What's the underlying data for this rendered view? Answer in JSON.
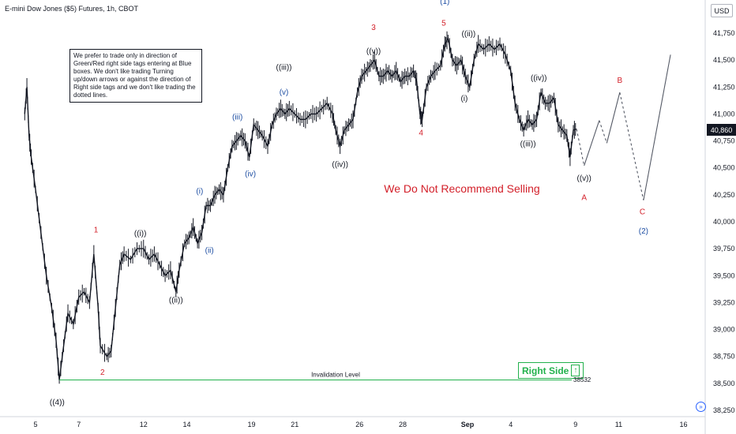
{
  "header": {
    "symbol_title": "E-mini Dow Jones ($5) Futures, 1h, CBOT",
    "currency_button": "USD"
  },
  "note_text": "We prefer to trade only in direction of Green/Red right side tags entering at Blue boxes. We don't like trading Turning up/down arrows or against the direction of Right side tags and we don't like trading the dotted lines.",
  "recommendation": "We Do Not Recommend Selling",
  "right_side_label": "Right Side",
  "invalidation": {
    "label": "Invalidation Level",
    "value": "38532",
    "price": 38532
  },
  "current_price": "40,860",
  "colors": {
    "wave_red": "#d3202a",
    "wave_blue": "#1f4fa3",
    "wave_black": "#131722",
    "green": "#22b14c",
    "bar": "#131722"
  },
  "chart_data": {
    "type": "line",
    "ylim": [
      38250,
      42000
    ],
    "yticks": [
      {
        "value": 38250,
        "label": "38,250"
      },
      {
        "value": 38500,
        "label": "38,500"
      },
      {
        "value": 38750,
        "label": "38,750"
      },
      {
        "value": 39000,
        "label": "39,000"
      },
      {
        "value": 39250,
        "label": "39,250"
      },
      {
        "value": 39500,
        "label": "39,500"
      },
      {
        "value": 39750,
        "label": "39,750"
      },
      {
        "value": 40000,
        "label": "40,000"
      },
      {
        "value": 40250,
        "label": "40,250"
      },
      {
        "value": 40500,
        "label": "40,500"
      },
      {
        "value": 40750,
        "label": "40,750"
      },
      {
        "value": 41000,
        "label": "41,000"
      },
      {
        "value": 41250,
        "label": "41,250"
      },
      {
        "value": 41500,
        "label": "41,500"
      },
      {
        "value": 41750,
        "label": "41,750"
      }
    ],
    "xlim": [
      -1,
      53
    ],
    "xticks": [
      {
        "t": 0,
        "label": "5"
      },
      {
        "t": 4,
        "label": "7"
      },
      {
        "t": 10,
        "label": "12"
      },
      {
        "t": 14,
        "label": "14"
      },
      {
        "t": 20,
        "label": "19"
      },
      {
        "t": 24,
        "label": "21"
      },
      {
        "t": 30,
        "label": "26"
      },
      {
        "t": 34,
        "label": "28"
      },
      {
        "t": 40,
        "label": "Sep"
      },
      {
        "t": 44,
        "label": "4"
      },
      {
        "t": 50,
        "label": "9"
      },
      {
        "t": 54,
        "label": "11"
      },
      {
        "t": 60,
        "label": "16"
      }
    ],
    "series": [
      {
        "kind": "price",
        "points": [
          [
            -1,
            41000
          ],
          [
            -0.8,
            41250
          ],
          [
            -0.6,
            40800
          ],
          [
            -0.4,
            40600
          ],
          [
            0,
            40300
          ],
          [
            0.5,
            39900
          ],
          [
            1,
            39500
          ],
          [
            1.5,
            39200
          ],
          [
            1.9,
            38900
          ],
          [
            2.2,
            38532
          ],
          [
            2.6,
            38850
          ],
          [
            3,
            39150
          ],
          [
            3.5,
            39050
          ],
          [
            4,
            39300
          ],
          [
            4.5,
            39350
          ],
          [
            5,
            39250
          ],
          [
            5.4,
            39700
          ],
          [
            5.8,
            39200
          ],
          [
            6,
            38850
          ],
          [
            6.6,
            38750
          ],
          [
            7,
            38800
          ],
          [
            7.4,
            39200
          ],
          [
            7.8,
            39600
          ],
          [
            8.2,
            39700
          ],
          [
            8.8,
            39650
          ],
          [
            9.4,
            39750
          ],
          [
            10,
            39750
          ],
          [
            10.5,
            39650
          ],
          [
            11,
            39700
          ],
          [
            11.5,
            39600
          ],
          [
            12,
            39500
          ],
          [
            12.5,
            39550
          ],
          [
            13,
            39350
          ],
          [
            13.3,
            39550
          ],
          [
            13.8,
            39800
          ],
          [
            14.2,
            39850
          ],
          [
            14.6,
            39950
          ],
          [
            15,
            39800
          ],
          [
            15.4,
            39900
          ],
          [
            15.8,
            40150
          ],
          [
            16.2,
            40150
          ],
          [
            16.6,
            40250
          ],
          [
            17,
            40300
          ],
          [
            17.4,
            40250
          ],
          [
            17.8,
            40500
          ],
          [
            18.2,
            40700
          ],
          [
            18.6,
            40750
          ],
          [
            19,
            40800
          ],
          [
            19.4,
            40750
          ],
          [
            19.8,
            40600
          ],
          [
            20.2,
            40900
          ],
          [
            20.6,
            40850
          ],
          [
            21,
            40800
          ],
          [
            21.5,
            40700
          ],
          [
            21.9,
            40900
          ],
          [
            22.3,
            41000
          ],
          [
            22.7,
            41050
          ],
          [
            23.1,
            41000
          ],
          [
            23.5,
            41050
          ],
          [
            24,
            41000
          ],
          [
            24.5,
            40950
          ],
          [
            25,
            40950
          ],
          [
            25.5,
            41000
          ],
          [
            26,
            41000
          ],
          [
            26.5,
            41050
          ],
          [
            27,
            41100
          ],
          [
            27.5,
            41000
          ],
          [
            27.8,
            40850
          ],
          [
            28.2,
            40700
          ],
          [
            28.6,
            40850
          ],
          [
            29,
            40900
          ],
          [
            29.4,
            40950
          ],
          [
            29.8,
            41200
          ],
          [
            30.2,
            41350
          ],
          [
            30.6,
            41400
          ],
          [
            31,
            41450
          ],
          [
            31.4,
            41500
          ],
          [
            31.8,
            41350
          ],
          [
            32.2,
            41350
          ],
          [
            32.6,
            41400
          ],
          [
            33,
            41350
          ],
          [
            33.4,
            41400
          ],
          [
            33.8,
            41300
          ],
          [
            34.2,
            41350
          ],
          [
            34.6,
            41350
          ],
          [
            35,
            41400
          ],
          [
            35.3,
            41300
          ],
          [
            35.6,
            41000
          ],
          [
            35.8,
            40950
          ],
          [
            36.2,
            41250
          ],
          [
            36.6,
            41350
          ],
          [
            37,
            41400
          ],
          [
            37.5,
            41450
          ],
          [
            37.9,
            41650
          ],
          [
            38.2,
            41700
          ],
          [
            38.6,
            41500
          ],
          [
            39,
            41450
          ],
          [
            39.4,
            41500
          ],
          [
            39.8,
            41350
          ],
          [
            40.2,
            41250
          ],
          [
            40.6,
            41500
          ],
          [
            41,
            41650
          ],
          [
            41.5,
            41600
          ],
          [
            42,
            41650
          ],
          [
            42.5,
            41600
          ],
          [
            43,
            41650
          ],
          [
            43.5,
            41550
          ],
          [
            44,
            41400
          ],
          [
            44.4,
            41100
          ],
          [
            44.8,
            40950
          ],
          [
            45.2,
            40850
          ],
          [
            45.6,
            40950
          ],
          [
            46,
            40900
          ],
          [
            46.4,
            40950
          ],
          [
            46.8,
            41200
          ],
          [
            47.2,
            41100
          ],
          [
            47.6,
            41100
          ],
          [
            48,
            41150
          ],
          [
            48.4,
            40900
          ],
          [
            48.8,
            40850
          ],
          [
            49.2,
            40800
          ],
          [
            49.5,
            40600
          ],
          [
            49.8,
            40850
          ],
          [
            50.1,
            40860
          ]
        ]
      },
      {
        "kind": "projection",
        "points": [
          [
            50.1,
            40860
          ],
          [
            50.8,
            40520
          ],
          [
            52.2,
            40940
          ],
          [
            52.9,
            40730
          ],
          [
            54.1,
            41200
          ]
        ],
        "dash_pattern": [
          [
            true,
            false,
            true,
            false
          ]
        ]
      },
      {
        "kind": "projection",
        "points": [
          [
            54.1,
            41200
          ],
          [
            56.3,
            40200
          ],
          [
            58.8,
            41550
          ]
        ],
        "dash_pattern": [
          [
            true,
            false
          ]
        ]
      }
    ],
    "wave_labels": [
      {
        "text": "((4))",
        "t": 2.0,
        "price": 38300,
        "color": "black"
      },
      {
        "text": "1",
        "t": 5.6,
        "price": 39900,
        "color": "red"
      },
      {
        "text": "2",
        "t": 6.2,
        "price": 38580,
        "color": "red"
      },
      {
        "text": "((i))",
        "t": 9.7,
        "price": 39870,
        "color": "black"
      },
      {
        "text": "((ii))",
        "t": 13.0,
        "price": 39250,
        "color": "black"
      },
      {
        "text": "(i)",
        "t": 15.2,
        "price": 40260,
        "color": "blue"
      },
      {
        "text": "(ii)",
        "t": 16.1,
        "price": 39710,
        "color": "blue"
      },
      {
        "text": "(iii)",
        "t": 18.7,
        "price": 40950,
        "color": "blue"
      },
      {
        "text": "(iv)",
        "t": 19.9,
        "price": 40420,
        "color": "blue"
      },
      {
        "text": "(v)",
        "t": 23.0,
        "price": 41180,
        "color": "blue"
      },
      {
        "text": "((iii))",
        "t": 23.0,
        "price": 41410,
        "color": "black"
      },
      {
        "text": "((iv))",
        "t": 28.2,
        "price": 40510,
        "color": "black"
      },
      {
        "text": "3",
        "t": 31.3,
        "price": 41780,
        "color": "red"
      },
      {
        "text": "((v))",
        "t": 31.3,
        "price": 41560,
        "color": "black"
      },
      {
        "text": "4",
        "t": 35.7,
        "price": 40800,
        "color": "red"
      },
      {
        "text": "(1)",
        "t": 37.9,
        "price": 42020,
        "color": "blue"
      },
      {
        "text": "5",
        "t": 37.8,
        "price": 41820,
        "color": "red"
      },
      {
        "text": "((ii))",
        "t": 40.1,
        "price": 41720,
        "color": "black"
      },
      {
        "text": "(i)",
        "t": 39.7,
        "price": 41120,
        "color": "black"
      },
      {
        "text": "((iv))",
        "t": 46.6,
        "price": 41310,
        "color": "black"
      },
      {
        "text": "((iii))",
        "t": 45.6,
        "price": 40700,
        "color": "black"
      },
      {
        "text": "((v))",
        "t": 50.8,
        "price": 40380,
        "color": "black"
      },
      {
        "text": "A",
        "t": 50.8,
        "price": 40200,
        "color": "red"
      },
      {
        "text": "B",
        "t": 54.1,
        "price": 41290,
        "color": "red"
      },
      {
        "text": "C",
        "t": 56.2,
        "price": 40070,
        "color": "red"
      },
      {
        "text": "(2)",
        "t": 56.3,
        "price": 39890,
        "color": "blue"
      }
    ]
  }
}
